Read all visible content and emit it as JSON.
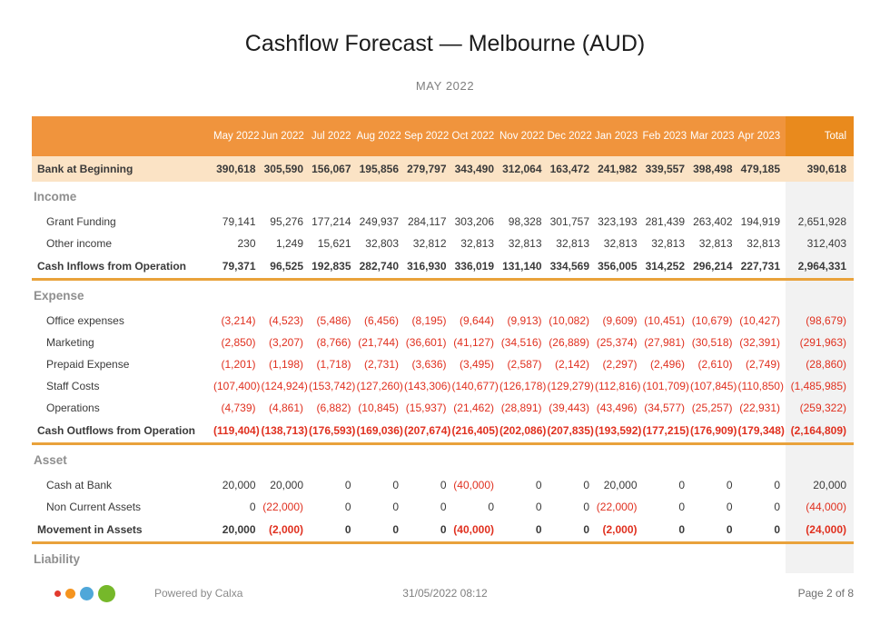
{
  "page": {
    "title": "Cashflow Forecast — Melbourne (AUD)",
    "subtitle": "MAY 2022"
  },
  "colors": {
    "header_bg": "#F0943D",
    "total_header_bg": "#E98A1D",
    "bank_row_bg": "#FBE3C5",
    "total_col_bg": "#F2F2F2",
    "divider": "#E9A23B",
    "negative": "#E0301F",
    "section_label": "#8F8F8F"
  },
  "table": {
    "columns": [
      "May 2022",
      "Jun 2022",
      "Jul 2022",
      "Aug 2022",
      "Sep 2022",
      "Oct 2022",
      "Nov 2022",
      "Dec 2022",
      "Jan 2023",
      "Feb 2023",
      "Mar 2023",
      "Apr 2023"
    ],
    "total_column": "Total",
    "bank_row": {
      "label": "Bank at Beginning",
      "values": [
        "390,618",
        "305,590",
        "156,067",
        "195,856",
        "279,797",
        "343,490",
        "312,064",
        "163,472",
        "241,982",
        "339,557",
        "398,498",
        "479,185",
        "390,618"
      ]
    },
    "sections": [
      {
        "name": "Income",
        "rows": [
          {
            "label": "Grant Funding",
            "values": [
              "79,141",
              "95,276",
              "177,214",
              "249,937",
              "284,117",
              "303,206",
              "98,328",
              "301,757",
              "323,193",
              "281,439",
              "263,402",
              "194,919",
              "2,651,928"
            ]
          },
          {
            "label": "Other income",
            "values": [
              "230",
              "1,249",
              "15,621",
              "32,803",
              "32,812",
              "32,813",
              "32,813",
              "32,813",
              "32,813",
              "32,813",
              "32,813",
              "32,813",
              "312,403"
            ]
          }
        ],
        "total_row": {
          "label": "Cash Inflows from Operation",
          "values": [
            "79,371",
            "96,525",
            "192,835",
            "282,740",
            "316,930",
            "336,019",
            "131,140",
            "334,569",
            "356,005",
            "314,252",
            "296,214",
            "227,731",
            "2,964,331"
          ]
        }
      },
      {
        "name": "Expense",
        "rows": [
          {
            "label": "Office expenses",
            "values": [
              "(3,214)",
              "(4,523)",
              "(5,486)",
              "(6,456)",
              "(8,195)",
              "(9,644)",
              "(9,913)",
              "(10,082)",
              "(9,609)",
              "(10,451)",
              "(10,679)",
              "(10,427)",
              "(98,679)"
            ]
          },
          {
            "label": "Marketing",
            "values": [
              "(2,850)",
              "(3,207)",
              "(8,766)",
              "(21,744)",
              "(36,601)",
              "(41,127)",
              "(34,516)",
              "(26,889)",
              "(25,374)",
              "(27,981)",
              "(30,518)",
              "(32,391)",
              "(291,963)"
            ]
          },
          {
            "label": "Prepaid Expense",
            "values": [
              "(1,201)",
              "(1,198)",
              "(1,718)",
              "(2,731)",
              "(3,636)",
              "(3,495)",
              "(2,587)",
              "(2,142)",
              "(2,297)",
              "(2,496)",
              "(2,610)",
              "(2,749)",
              "(28,860)"
            ]
          },
          {
            "label": "Staff Costs",
            "values": [
              "(107,400)",
              "(124,924)",
              "(153,742)",
              "(127,260)",
              "(143,306)",
              "(140,677)",
              "(126,178)",
              "(129,279)",
              "(112,816)",
              "(101,709)",
              "(107,845)",
              "(110,850)",
              "(1,485,985)"
            ]
          },
          {
            "label": "Operations",
            "values": [
              "(4,739)",
              "(4,861)",
              "(6,882)",
              "(10,845)",
              "(15,937)",
              "(21,462)",
              "(28,891)",
              "(39,443)",
              "(43,496)",
              "(34,577)",
              "(25,257)",
              "(22,931)",
              "(259,322)"
            ]
          }
        ],
        "total_row": {
          "label": "Cash Outflows from Operation",
          "values": [
            "(119,404)",
            "(138,713)",
            "(176,593)",
            "(169,036)",
            "(207,674)",
            "(216,405)",
            "(202,086)",
            "(207,835)",
            "(193,592)",
            "(177,215)",
            "(176,909)",
            "(179,348)",
            "(2,164,809)"
          ]
        }
      },
      {
        "name": "Asset",
        "rows": [
          {
            "label": "Cash at Bank",
            "values": [
              "20,000",
              "20,000",
              "0",
              "0",
              "0",
              "(40,000)",
              "0",
              "0",
              "20,000",
              "0",
              "0",
              "0",
              "20,000"
            ]
          },
          {
            "label": "Non Current Assets",
            "values": [
              "0",
              "(22,000)",
              "0",
              "0",
              "0",
              "0",
              "0",
              "0",
              "(22,000)",
              "0",
              "0",
              "0",
              "(44,000)"
            ]
          }
        ],
        "total_row": {
          "label": "Movement in Assets",
          "values": [
            "20,000",
            "(2,000)",
            "0",
            "0",
            "0",
            "(40,000)",
            "0",
            "0",
            "(2,000)",
            "0",
            "0",
            "0",
            "(24,000)"
          ]
        }
      },
      {
        "name": "Liability",
        "rows": []
      }
    ]
  },
  "footer": {
    "powered_by": "Powered by Calxa",
    "timestamp": "31/05/2022 08:12",
    "page_label": "Page 2 of 8",
    "logo_dots": [
      "#E23A2E",
      "#F5941E",
      "#4FA7D9",
      "#76B82A"
    ]
  }
}
